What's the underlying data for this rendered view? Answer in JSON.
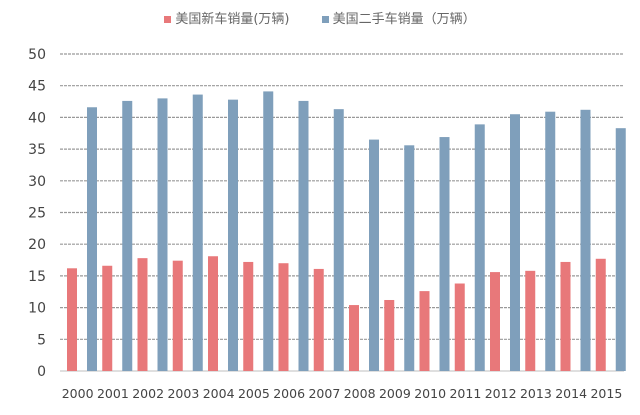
{
  "chart_data": {
    "type": "bar",
    "title": "",
    "xlabel": "",
    "ylabel": "",
    "ylim": [
      0,
      50
    ],
    "yticks": [
      "0",
      "5",
      "10",
      "15",
      "20",
      "25",
      "30",
      "35",
      "40",
      "45",
      "50"
    ],
    "grid": true,
    "legend_position": "top",
    "categories": [
      "2000",
      "2001",
      "2002",
      "2003",
      "2004",
      "2005",
      "2006",
      "2007",
      "2008",
      "2009",
      "2010",
      "2011",
      "2012",
      "2013",
      "2014",
      "2015"
    ],
    "series": [
      {
        "name": "美国新车销量(万辆)",
        "color": "#e8787a",
        "values": [
          16.2,
          16.6,
          17.8,
          17.4,
          18.1,
          17.2,
          17.0,
          16.1,
          10.4,
          11.2,
          12.6,
          13.8,
          15.6,
          15.8,
          17.2,
          17.7
        ]
      },
      {
        "name": "美国二手车销量（万辆）",
        "color": "#7f9fbb",
        "values": [
          41.6,
          42.6,
          43.0,
          43.6,
          42.8,
          44.1,
          42.6,
          41.3,
          36.5,
          35.6,
          36.9,
          38.9,
          40.5,
          40.9,
          41.2,
          38.3
        ]
      }
    ]
  }
}
